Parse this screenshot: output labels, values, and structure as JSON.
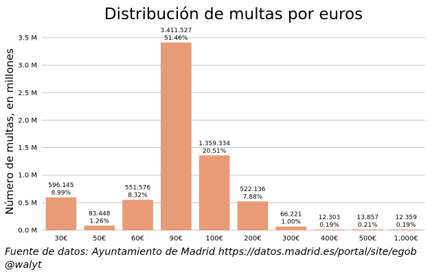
{
  "chart_data": {
    "type": "bar",
    "title": "Distribución de multas por euros",
    "xlabel": "",
    "ylabel": "Número de multas, en millones",
    "categories": [
      "30€",
      "50€",
      "60€",
      "90€",
      "100€",
      "200€",
      "300€",
      "400€",
      "500€",
      "1,000€"
    ],
    "values": [
      596145,
      83448,
      551576,
      3411527,
      1359334,
      522136,
      66221,
      12303,
      13857,
      12359
    ],
    "value_labels": [
      "596.145",
      "83.448",
      "551.576",
      "3.411.527",
      "1.359.334",
      "522.136",
      "66.221",
      "12.303",
      "13.857",
      "12.359"
    ],
    "percent_labels": [
      "8.99%",
      "1.26%",
      "8.32%",
      "51.46%",
      "20.51%",
      "7.88%",
      "1.00%",
      "0.19%",
      "0.21%",
      "0.19%"
    ],
    "y_ticks": [
      0,
      500000,
      1000000,
      1500000,
      2000000,
      2500000,
      3000000,
      3500000
    ],
    "y_tick_labels": [
      "0.0 M",
      "0.5 M",
      "1.0 M",
      "1.5 M",
      "2.0 M",
      "2.5 M",
      "3.0 M",
      "3.5 M"
    ],
    "ylim": [
      0,
      3600000
    ],
    "grid": true,
    "legend": "none",
    "colors": {
      "bar": "#e99b76",
      "grid": "#c3c3c3"
    }
  },
  "footer": {
    "source_line": "Fuente de datos: Ayuntamiento de Madrid https://datos.madrid.es/portal/site/egob",
    "author_line": "@walyt"
  }
}
